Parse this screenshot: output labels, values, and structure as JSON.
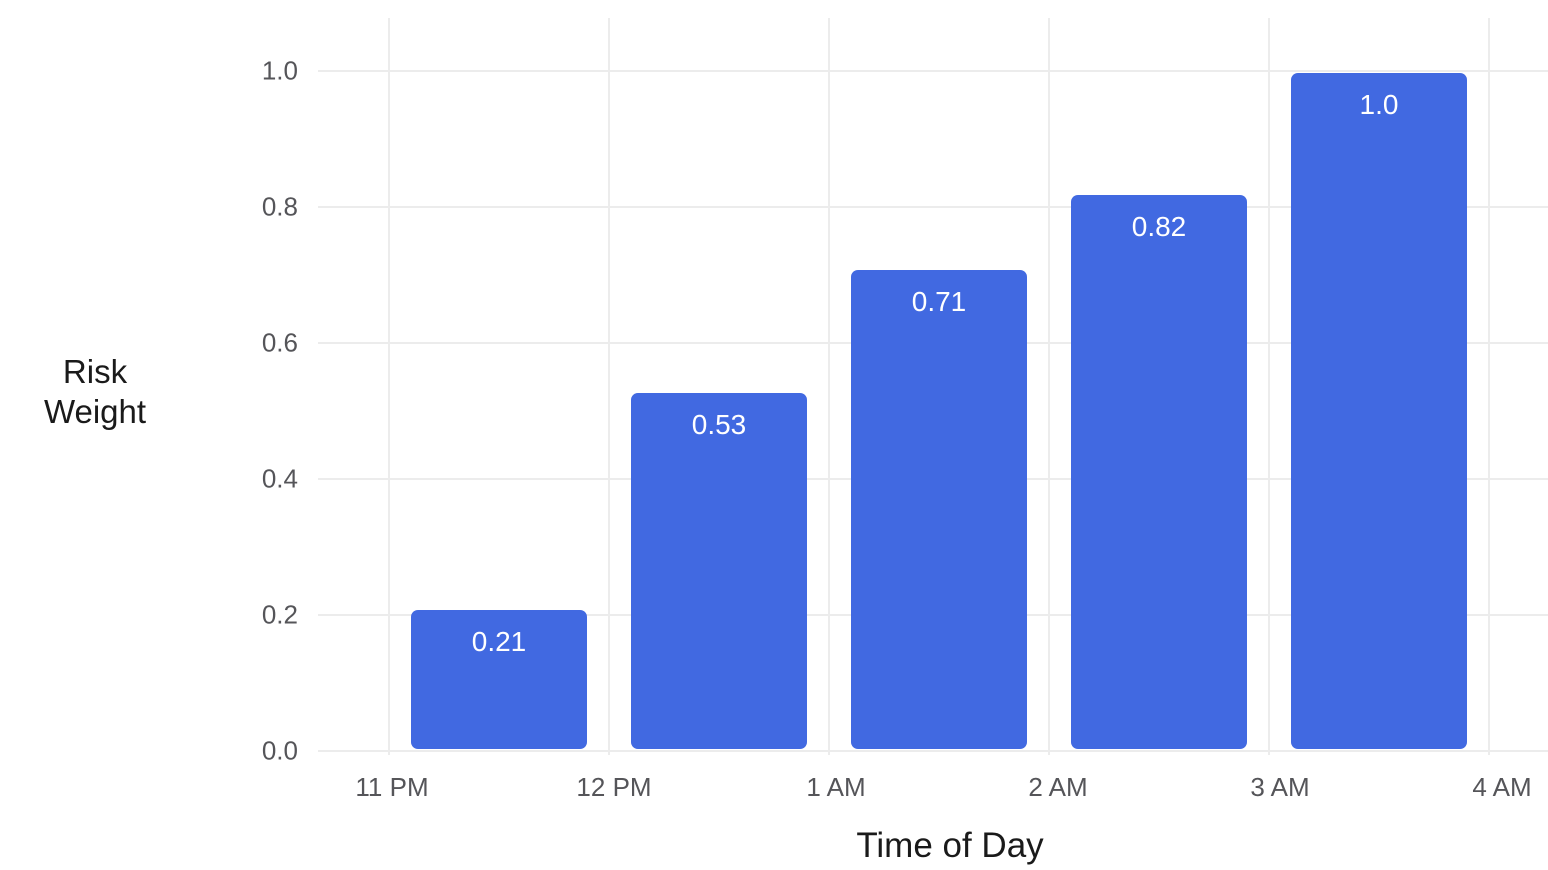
{
  "chart_data": {
    "type": "bar",
    "title": "",
    "xlabel": "Time of Day",
    "ylabel": "Risk Weight",
    "x_tick_labels": [
      "11 PM",
      "12 PM",
      "1 AM",
      "2 AM",
      "3 AM",
      "4 AM"
    ],
    "categories": [
      "11 PM–12 PM",
      "12 PM–1 AM",
      "1 AM–2 AM",
      "2 AM–3 AM",
      "3 AM–4 AM"
    ],
    "values": [
      0.21,
      0.53,
      0.71,
      0.82,
      1.0
    ],
    "value_labels": [
      "0.21",
      "0.53",
      "0.71",
      "0.82",
      "1.0"
    ],
    "y_ticks": [
      "0.0",
      "0.2",
      "0.4",
      "0.6",
      "0.8",
      "1.0"
    ],
    "ylim": [
      0,
      1.0
    ],
    "grid": true,
    "legend": null,
    "bar_color": "#4169e1"
  }
}
